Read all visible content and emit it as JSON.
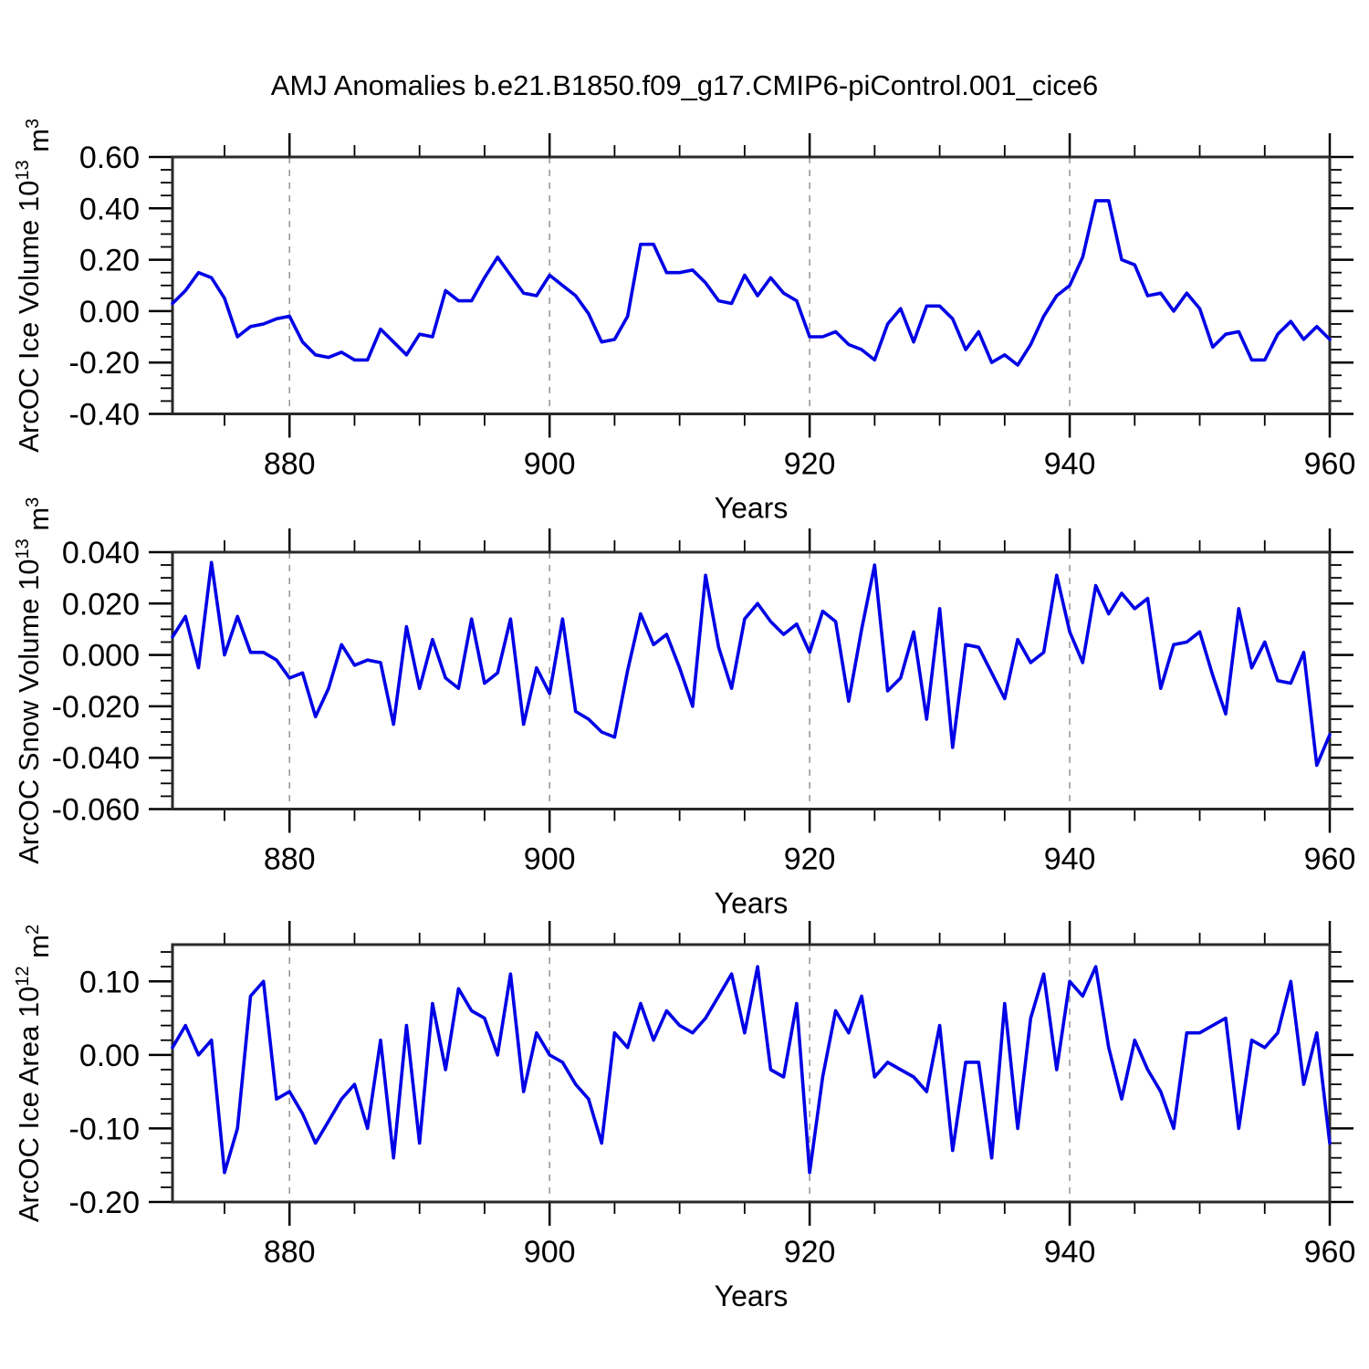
{
  "title": "AMJ Anomalies b.e21.B1850.f09_g17.CMIP6-piControl.001_cice6",
  "axis": {
    "xlabel": "Years",
    "xtick_labels": [
      "880",
      "900",
      "920",
      "940",
      "960"
    ],
    "xticks_major": [
      880,
      900,
      920,
      940,
      960
    ],
    "gridlines_x": [
      880,
      900,
      920,
      940
    ],
    "x_minor_step": 5,
    "xlim": [
      871,
      960
    ]
  },
  "colors": {
    "line": "#0000e6",
    "frame": "#2a2a2a",
    "tick": "#000000",
    "grid": "#999999",
    "text": "#000000"
  },
  "chart_data": [
    {
      "type": "line",
      "title": "",
      "xlabel": "Years",
      "ylabel_parts": [
        {
          "text": "ArcOC Ice Volume 10"
        },
        {
          "text": "13",
          "sup": true
        },
        {
          "text": " m"
        },
        {
          "text": "3",
          "sup": true
        }
      ],
      "ylim": [
        -0.4,
        0.6
      ],
      "yticks_major": [
        0.6,
        0.4,
        0.2,
        0.0,
        -0.2,
        -0.4
      ],
      "ytick_labels": [
        "0.60",
        "0.40",
        "0.20",
        "0.00",
        "-0.20",
        "-0.40"
      ],
      "y_minor_step": 0.05,
      "grid": true,
      "legend": "none",
      "x": [
        871,
        872,
        873,
        874,
        875,
        876,
        877,
        878,
        879,
        880,
        881,
        882,
        883,
        884,
        885,
        886,
        887,
        888,
        889,
        890,
        891,
        892,
        893,
        894,
        895,
        896,
        897,
        898,
        899,
        900,
        901,
        902,
        903,
        904,
        905,
        906,
        907,
        908,
        909,
        910,
        911,
        912,
        913,
        914,
        915,
        916,
        917,
        918,
        919,
        920,
        921,
        922,
        923,
        924,
        925,
        926,
        927,
        928,
        929,
        930,
        931,
        932,
        933,
        934,
        935,
        936,
        937,
        938,
        939,
        940,
        941,
        942,
        943,
        944,
        945,
        946,
        947,
        948,
        949,
        950,
        951,
        952,
        953,
        954,
        955,
        956,
        957,
        958,
        959,
        960
      ],
      "values": [
        0.03,
        0.08,
        0.15,
        0.13,
        0.05,
        -0.1,
        -0.06,
        -0.05,
        -0.03,
        -0.02,
        -0.12,
        -0.17,
        -0.18,
        -0.16,
        -0.19,
        -0.19,
        -0.07,
        -0.12,
        -0.17,
        -0.09,
        -0.1,
        0.08,
        0.04,
        0.04,
        0.13,
        0.21,
        0.14,
        0.07,
        0.06,
        0.14,
        0.1,
        0.06,
        -0.01,
        -0.12,
        -0.11,
        -0.02,
        0.26,
        0.26,
        0.15,
        0.15,
        0.16,
        0.11,
        0.04,
        0.03,
        0.14,
        0.06,
        0.13,
        0.07,
        0.04,
        -0.1,
        -0.1,
        -0.08,
        -0.13,
        -0.15,
        -0.19,
        -0.05,
        0.01,
        -0.12,
        0.02,
        0.02,
        -0.03,
        -0.15,
        -0.08,
        -0.2,
        -0.17,
        -0.21,
        -0.13,
        -0.02,
        0.06,
        0.1,
        0.21,
        0.43,
        0.43,
        0.2,
        0.18,
        0.06,
        0.07,
        0.0,
        0.07,
        0.01,
        -0.14,
        -0.09,
        -0.08,
        -0.19,
        -0.19,
        -0.09,
        -0.04,
        -0.11,
        -0.06,
        -0.11
      ]
    },
    {
      "type": "line",
      "title": "",
      "xlabel": "Years",
      "ylabel_parts": [
        {
          "text": "ArcOC Snow Volume 10"
        },
        {
          "text": "13",
          "sup": true
        },
        {
          "text": " m"
        },
        {
          "text": "3",
          "sup": true
        }
      ],
      "ylim": [
        -0.06,
        0.04
      ],
      "yticks_major": [
        0.04,
        0.02,
        0.0,
        -0.02,
        -0.04,
        -0.06
      ],
      "ytick_labels": [
        "0.040",
        "0.020",
        "0.000",
        "-0.020",
        "-0.040",
        "-0.060"
      ],
      "y_minor_step": 0.005,
      "grid": true,
      "legend": "none",
      "x": [
        871,
        872,
        873,
        874,
        875,
        876,
        877,
        878,
        879,
        880,
        881,
        882,
        883,
        884,
        885,
        886,
        887,
        888,
        889,
        890,
        891,
        892,
        893,
        894,
        895,
        896,
        897,
        898,
        899,
        900,
        901,
        902,
        903,
        904,
        905,
        906,
        907,
        908,
        909,
        910,
        911,
        912,
        913,
        914,
        915,
        916,
        917,
        918,
        919,
        920,
        921,
        922,
        923,
        924,
        925,
        926,
        927,
        928,
        929,
        930,
        931,
        932,
        933,
        934,
        935,
        936,
        937,
        938,
        939,
        940,
        941,
        942,
        943,
        944,
        945,
        946,
        947,
        948,
        949,
        950,
        951,
        952,
        953,
        954,
        955,
        956,
        957,
        958,
        959,
        960
      ],
      "values": [
        0.007,
        0.015,
        -0.005,
        0.036,
        0.0,
        0.015,
        0.001,
        0.001,
        -0.002,
        -0.009,
        -0.007,
        -0.024,
        -0.013,
        0.004,
        -0.004,
        -0.002,
        -0.003,
        -0.027,
        0.011,
        -0.013,
        0.006,
        -0.009,
        -0.013,
        0.014,
        -0.011,
        -0.007,
        0.014,
        -0.027,
        -0.005,
        -0.015,
        0.014,
        -0.022,
        -0.025,
        -0.03,
        -0.032,
        -0.006,
        0.016,
        0.004,
        0.008,
        -0.005,
        -0.02,
        0.031,
        0.003,
        -0.013,
        0.014,
        0.02,
        0.013,
        0.008,
        0.012,
        0.001,
        0.017,
        0.013,
        -0.018,
        0.01,
        0.035,
        -0.014,
        -0.009,
        0.009,
        -0.025,
        0.018,
        -0.036,
        0.004,
        0.003,
        -0.007,
        -0.017,
        0.006,
        -0.003,
        0.001,
        0.031,
        0.009,
        -0.003,
        0.027,
        0.016,
        0.024,
        0.018,
        0.022,
        -0.013,
        0.004,
        0.005,
        0.009,
        -0.008,
        -0.023,
        0.018,
        -0.005,
        0.005,
        -0.01,
        -0.011,
        0.001,
        -0.043,
        -0.031
      ]
    },
    {
      "type": "line",
      "title": "",
      "xlabel": "Years",
      "ylabel_parts": [
        {
          "text": "ArcOC Ice Area 10"
        },
        {
          "text": "12",
          "sup": true
        },
        {
          "text": " m"
        },
        {
          "text": "2",
          "sup": true
        }
      ],
      "ylim": [
        -0.2,
        0.15
      ],
      "yticks_major": [
        0.1,
        0.0,
        -0.1,
        -0.2
      ],
      "ytick_labels": [
        "0.10",
        "0.00",
        "-0.10",
        "-0.20"
      ],
      "y_minor_step": 0.02,
      "grid": true,
      "legend": "none",
      "x": [
        871,
        872,
        873,
        874,
        875,
        876,
        877,
        878,
        879,
        880,
        881,
        882,
        883,
        884,
        885,
        886,
        887,
        888,
        889,
        890,
        891,
        892,
        893,
        894,
        895,
        896,
        897,
        898,
        899,
        900,
        901,
        902,
        903,
        904,
        905,
        906,
        907,
        908,
        909,
        910,
        911,
        912,
        913,
        914,
        915,
        916,
        917,
        918,
        919,
        920,
        921,
        922,
        923,
        924,
        925,
        926,
        927,
        928,
        929,
        930,
        931,
        932,
        933,
        934,
        935,
        936,
        937,
        938,
        939,
        940,
        941,
        942,
        943,
        944,
        945,
        946,
        947,
        948,
        949,
        950,
        951,
        952,
        953,
        954,
        955,
        956,
        957,
        958,
        959,
        960
      ],
      "values": [
        0.01,
        0.04,
        0.0,
        0.02,
        -0.16,
        -0.1,
        0.08,
        0.1,
        -0.06,
        -0.05,
        -0.08,
        -0.12,
        -0.09,
        -0.06,
        -0.04,
        -0.1,
        0.02,
        -0.14,
        0.04,
        -0.12,
        0.07,
        -0.02,
        0.09,
        0.06,
        0.05,
        0.0,
        0.11,
        -0.05,
        0.03,
        0.0,
        -0.01,
        -0.04,
        -0.06,
        -0.12,
        0.03,
        0.01,
        0.07,
        0.02,
        0.06,
        0.04,
        0.03,
        0.05,
        0.08,
        0.11,
        0.03,
        0.12,
        -0.02,
        -0.03,
        0.07,
        -0.16,
        -0.03,
        0.06,
        0.03,
        0.08,
        -0.03,
        -0.01,
        -0.02,
        -0.03,
        -0.05,
        0.04,
        -0.13,
        -0.01,
        -0.01,
        -0.14,
        0.07,
        -0.1,
        0.05,
        0.11,
        -0.02,
        0.1,
        0.08,
        0.12,
        0.01,
        -0.06,
        0.02,
        -0.02,
        -0.05,
        -0.1,
        0.03,
        0.03,
        0.04,
        0.05,
        -0.1,
        0.02,
        0.01,
        0.03,
        0.1,
        -0.04,
        0.03,
        -0.12
      ]
    }
  ]
}
